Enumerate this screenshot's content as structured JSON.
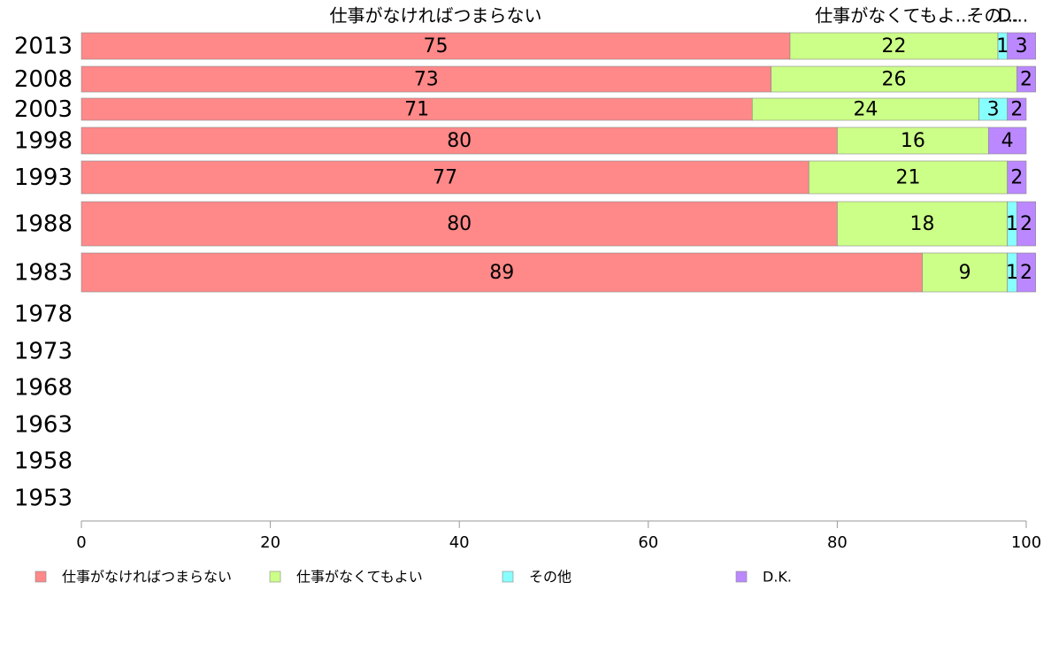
{
  "chart_data": {
    "type": "bar",
    "orientation": "horizontal",
    "stacked": true,
    "categories": [
      "2013",
      "2008",
      "2003",
      "1998",
      "1993",
      "1988",
      "1983",
      "1978",
      "1973",
      "1968",
      "1963",
      "1958",
      "1953"
    ],
    "series": [
      {
        "name": "仕事がなければつまらない",
        "color": "#ff8888",
        "values": [
          75,
          73,
          71,
          80,
          77,
          80,
          89,
          null,
          null,
          null,
          null,
          null,
          null
        ],
        "labels": [
          "75",
          "73",
          "71",
          "80",
          "77",
          "80",
          "89",
          "",
          "",
          "",
          "",
          "",
          ""
        ]
      },
      {
        "name": "仕事がなくてもよい",
        "color": "#ccff88",
        "values": [
          22,
          26,
          24,
          16,
          21,
          18,
          9,
          null,
          null,
          null,
          null,
          null,
          null
        ],
        "labels": [
          "22",
          "26",
          "24",
          "16",
          "21",
          "18",
          "9",
          "",
          "",
          "",
          "",
          "",
          ""
        ]
      },
      {
        "name": "その他",
        "color": "#88ffff",
        "values": [
          1,
          0,
          3,
          0,
          0,
          1,
          1,
          null,
          null,
          null,
          null,
          null,
          null
        ],
        "labels": [
          "1",
          "",
          "3",
          "",
          "",
          "1",
          "1",
          "",
          "",
          "",
          "",
          "",
          ""
        ]
      },
      {
        "name": "D.K.",
        "color": "#bb88ff",
        "values": [
          3,
          2,
          2,
          4,
          2,
          2,
          2,
          null,
          null,
          null,
          null,
          null,
          null
        ],
        "labels": [
          "3",
          "2",
          "2",
          "4",
          "2",
          "2",
          "2",
          "",
          "",
          "",
          "",
          "",
          ""
        ]
      }
    ],
    "header_labels": [
      "仕事がなければつまらない",
      "仕事がなくてもよ...",
      "その...",
      "D..."
    ],
    "xlim": [
      0,
      100
    ],
    "xticks": [
      "0",
      "20",
      "40",
      "60",
      "80",
      "100"
    ],
    "legend_position": "bottom",
    "grid": false,
    "title": "",
    "xlabel": "",
    "ylabel": ""
  }
}
